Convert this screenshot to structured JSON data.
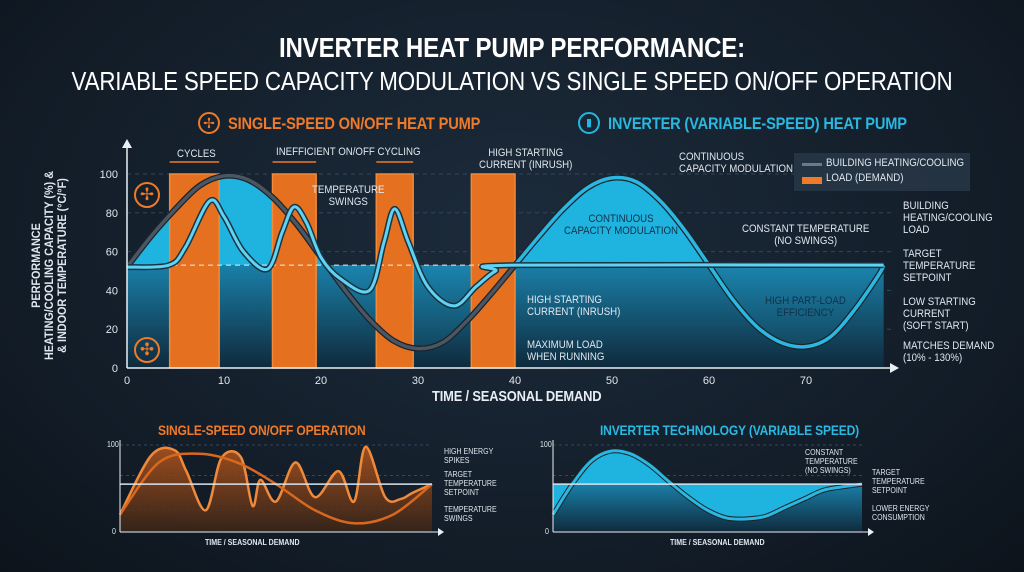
{
  "title": {
    "line1": "INVERTER HEAT PUMP PERFORMANCE:",
    "line2": "VARIABLE SPEED CAPACITY MODULATION VS SINGLE SPEED ON/OFF OPERATION"
  },
  "colors": {
    "orange": "#ee7a2a",
    "cyan": "#22b6e0",
    "dark_curve": "#3a4550",
    "background": "#141f2b"
  },
  "chart_data": [
    {
      "type": "line",
      "title_left": "SINGLE-SPEED ON/OFF HEAT PUMP",
      "title_right": "INVERTER (VARIABLE-SPEED) HEAT PUMP",
      "xlabel": "TIME / SEASONAL DEMAND",
      "ylabel": "PERFORMANCE\nHEATING/COOLING CAPACITY (%) &\n& INDOOR TEMPERATURE (°C/°F)",
      "xlim": [
        0,
        78
      ],
      "ylim": [
        0,
        110
      ],
      "xticks": [
        "0",
        "10",
        "20",
        "30",
        "40",
        "50",
        "60",
        "70"
      ],
      "yticks": [
        "0",
        "20",
        "40",
        "60",
        "80",
        "100"
      ],
      "grid": true,
      "legend": {
        "position": "top-right",
        "items": [
          "BUILDING HEATING/COOLING",
          "LOAD (DEMAND)"
        ]
      },
      "setpoint": 53,
      "on_off_bars": [
        [
          4.4,
          9.5,
          100
        ],
        [
          15,
          19.5,
          100
        ],
        [
          25.7,
          29.5,
          100
        ],
        [
          35.5,
          40,
          100
        ]
      ],
      "building_load": {
        "x": [
          0,
          2.5,
          5,
          7.5,
          10,
          12.5,
          15,
          17.5,
          20,
          22.5,
          25,
          27.5,
          30,
          32.5,
          35,
          37.5,
          40,
          42.5,
          45,
          47.5,
          50,
          52.5,
          55,
          57.5,
          60,
          62.5,
          65,
          67.5,
          70,
          72.5,
          75,
          77.5,
          78
        ],
        "y": [
          52,
          68,
          82,
          94,
          99,
          97,
          88,
          74,
          57,
          40,
          25,
          14,
          10,
          13,
          24,
          38,
          53,
          68,
          82,
          93,
          98,
          96,
          86,
          71,
          53,
          35,
          21,
          13,
          11,
          16,
          30,
          48,
          53
        ]
      },
      "indoor_temperature": {
        "x": [
          0,
          4.3,
          6,
          8.5,
          10,
          12,
          14.5,
          16,
          17.2,
          18.5,
          20,
          22,
          25,
          26.5,
          27.6,
          29,
          31,
          33.7,
          36,
          38,
          40,
          78
        ],
        "y": [
          52,
          53,
          62,
          86,
          78,
          60,
          51,
          70,
          83,
          75,
          57,
          46,
          40,
          65,
          82,
          65,
          42,
          32,
          42,
          50,
          53,
          53
        ]
      },
      "annotations": {
        "cycles": "CYCLES",
        "inefficient": "INEFFICIENT ON/OFF CYCLING",
        "high_start_top": "HIGH STARTING\nCURRENT (INRUSH)",
        "temp_swings": "TEMPERATURE\nSWINGS",
        "high_start_mid": "HIGH STARTING\nCURRENT (INRUSH)",
        "max_load": "MAXIMUM LOAD\nWHEN RUNNING",
        "cont_mod_top": "CONTINUOUS\nCAPACITY MODULATION",
        "cont_mod_in": "CONTINUOUS\nCAPACITY MODULATION",
        "constant_temp": "CONSTANT TEMPERATURE\n(NO SWINGS)",
        "building_load": "BUILDING\nHEATING/COOLING\nLOAD",
        "target": "TARGET\nTEMPERATURE\nSETPOINT",
        "part_load": "HIGH PART-LOAD\nEFFICIENCY",
        "low_start": "LOW STARTING\nCURRENT\n(SOFT START)",
        "matches": "MATCHES DEMAND\n(10% - 130%)"
      }
    },
    {
      "type": "area",
      "title": "SINGLE-SPEED ON/OFF OPERATION",
      "xlabel": "TIME / SEASONAL DEMAND",
      "yticks": [
        "0",
        "100"
      ],
      "ylim": [
        0,
        100
      ],
      "setpoint": 55,
      "temperature": {
        "x": [
          0,
          8,
          14,
          17,
          22,
          26,
          31,
          34,
          36,
          40,
          45,
          50,
          56,
          60,
          63,
          68,
          72,
          75,
          80
        ],
        "y": [
          20,
          88,
          94,
          70,
          25,
          85,
          86,
          30,
          60,
          35,
          80,
          40,
          70,
          35,
          98,
          40,
          38,
          45,
          55
        ]
      },
      "demand": {
        "x": [
          0,
          10,
          20,
          30,
          40,
          50,
          60,
          70,
          80
        ],
        "y": [
          20,
          80,
          90,
          80,
          55,
          25,
          10,
          20,
          55
        ]
      },
      "annotations": {
        "spikes": "HIGH ENERGY\nSPIKES",
        "target": "TARGET\nTEMPERATURE\nSETPOINT",
        "swings": "TEMPERATURE\nSWINGS"
      }
    },
    {
      "type": "area",
      "title": "INVERTER TECHNOLOGY (VARIABLE SPEED)",
      "xlabel": "TIME / SEASONAL DEMAND",
      "yticks": [
        "0",
        "100"
      ],
      "ylim": [
        0,
        100
      ],
      "setpoint": 55,
      "demand": {
        "x": [
          0,
          5,
          10,
          15,
          20,
          25,
          30,
          35,
          40,
          45,
          50,
          55,
          60,
          65,
          70,
          75,
          80
        ],
        "y": [
          20,
          55,
          82,
          93,
          90,
          77,
          58,
          40,
          25,
          16,
          15,
          18,
          28,
          38,
          48,
          52,
          55
        ]
      },
      "annotations": {
        "constant": "CONSTANT\nTEMPERATURE\n(NO SWINGS)",
        "target": "TARGET\nTEMPERATURE\nSETPOINT",
        "lower": "LOWER ENERGY\nCONSUMPTION"
      }
    }
  ]
}
